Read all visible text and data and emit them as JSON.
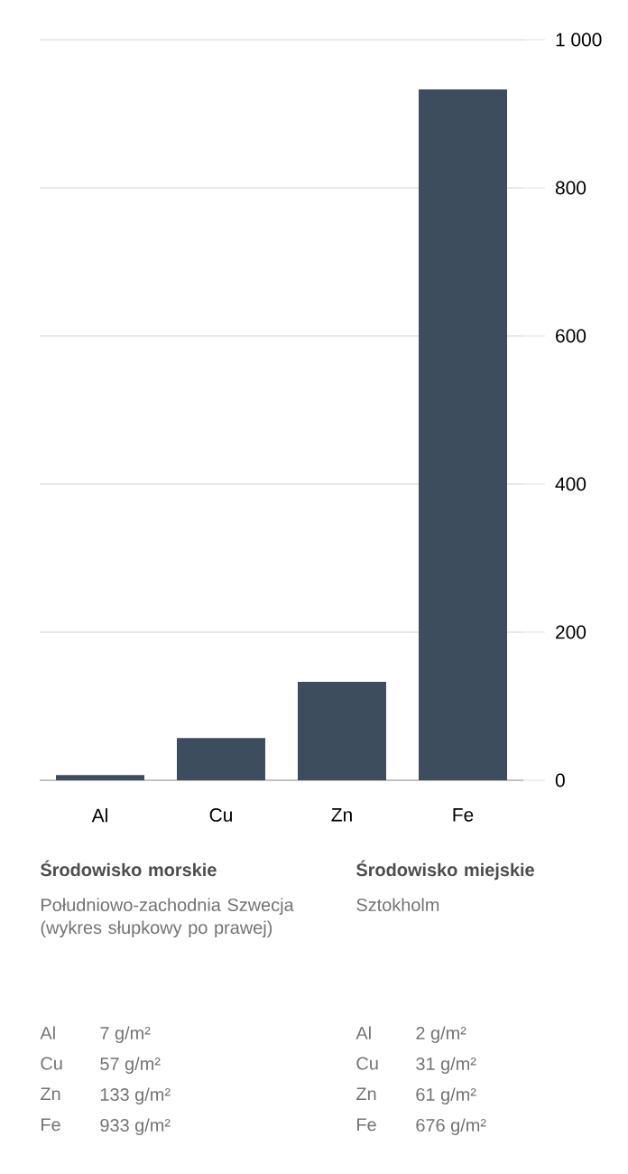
{
  "chart_data": {
    "type": "bar",
    "categories": [
      "Al",
      "Cu",
      "Zn",
      "Fe"
    ],
    "values": [
      7,
      57,
      133,
      933
    ],
    "color": "#3e4d5d",
    "ylim": [
      0,
      1000
    ],
    "yticks": [
      0,
      200,
      400,
      600,
      800,
      {
        "value": 1000,
        "label": "1 000"
      }
    ],
    "grid": "y",
    "annotations": [
      "Środowisko morskie",
      "Południowo-zachodnia Szwecja (wykres słupkowy po prawej)",
      "Al",
      "7 g/m²",
      "Cu",
      "57 g/m²",
      "Zn",
      "133 g/m²",
      "Fe",
      "933 g/m²",
      "Środowisko miejskie",
      "Sztokholm",
      "Al",
      "2 g/m²",
      "Cu",
      "31 g/m²",
      "Zn",
      "61 g/m²",
      "Fe",
      "676 g/m²"
    ]
  }
}
